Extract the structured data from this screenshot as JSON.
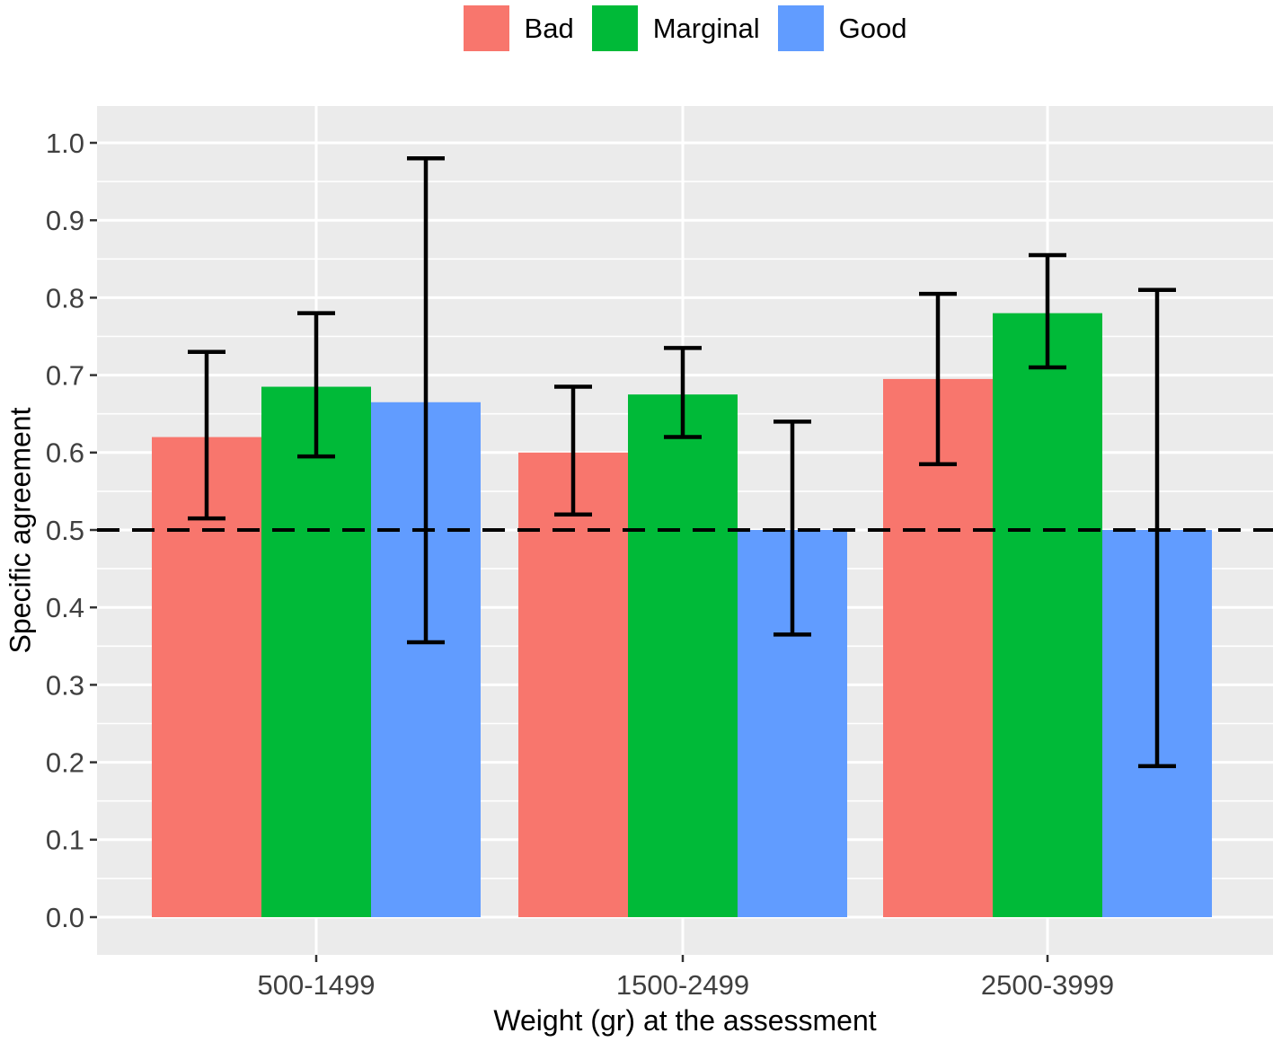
{
  "figure": {
    "kind": "static-plot",
    "background": "#ffffff"
  },
  "chart_data": {
    "type": "bar",
    "title": "",
    "xlabel": "Weight (gr) at the assessment",
    "ylabel": "Specific agreement",
    "categories": [
      "500-1499",
      "1500-2499",
      "2500-3999"
    ],
    "series": [
      {
        "name": "Bad",
        "color": "#F8766D",
        "values": [
          0.62,
          0.6,
          0.695
        ],
        "ci_low": [
          0.515,
          0.52,
          0.585
        ],
        "ci_high": [
          0.73,
          0.685,
          0.805
        ]
      },
      {
        "name": "Marginal",
        "color": "#00BA38",
        "values": [
          0.685,
          0.675,
          0.78
        ],
        "ci_low": [
          0.595,
          0.62,
          0.71
        ],
        "ci_high": [
          0.78,
          0.735,
          0.855
        ]
      },
      {
        "name": "Good",
        "color": "#619CFF",
        "values": [
          0.665,
          0.5,
          0.5
        ],
        "ci_low": [
          0.355,
          0.365,
          0.195
        ],
        "ci_high": [
          0.98,
          0.64,
          0.81
        ]
      }
    ],
    "ylim": [
      0.0,
      1.0
    ],
    "y_major_step": 0.1,
    "y_minor_step": 0.05,
    "y_tick_labels": [
      "0.0",
      "0.1",
      "0.2",
      "0.3",
      "0.4",
      "0.5",
      "0.6",
      "0.7",
      "0.8",
      "0.9",
      "1.0"
    ],
    "reference_line": {
      "y": 0.5,
      "style": "dashed",
      "color": "#000000"
    },
    "error_bars": true,
    "legend_position": "top",
    "grid": true,
    "panel_background": "#EBEBEB",
    "grid_color": "#FFFFFF",
    "tick_color": "#333333",
    "tick_label_color": "#404040"
  }
}
